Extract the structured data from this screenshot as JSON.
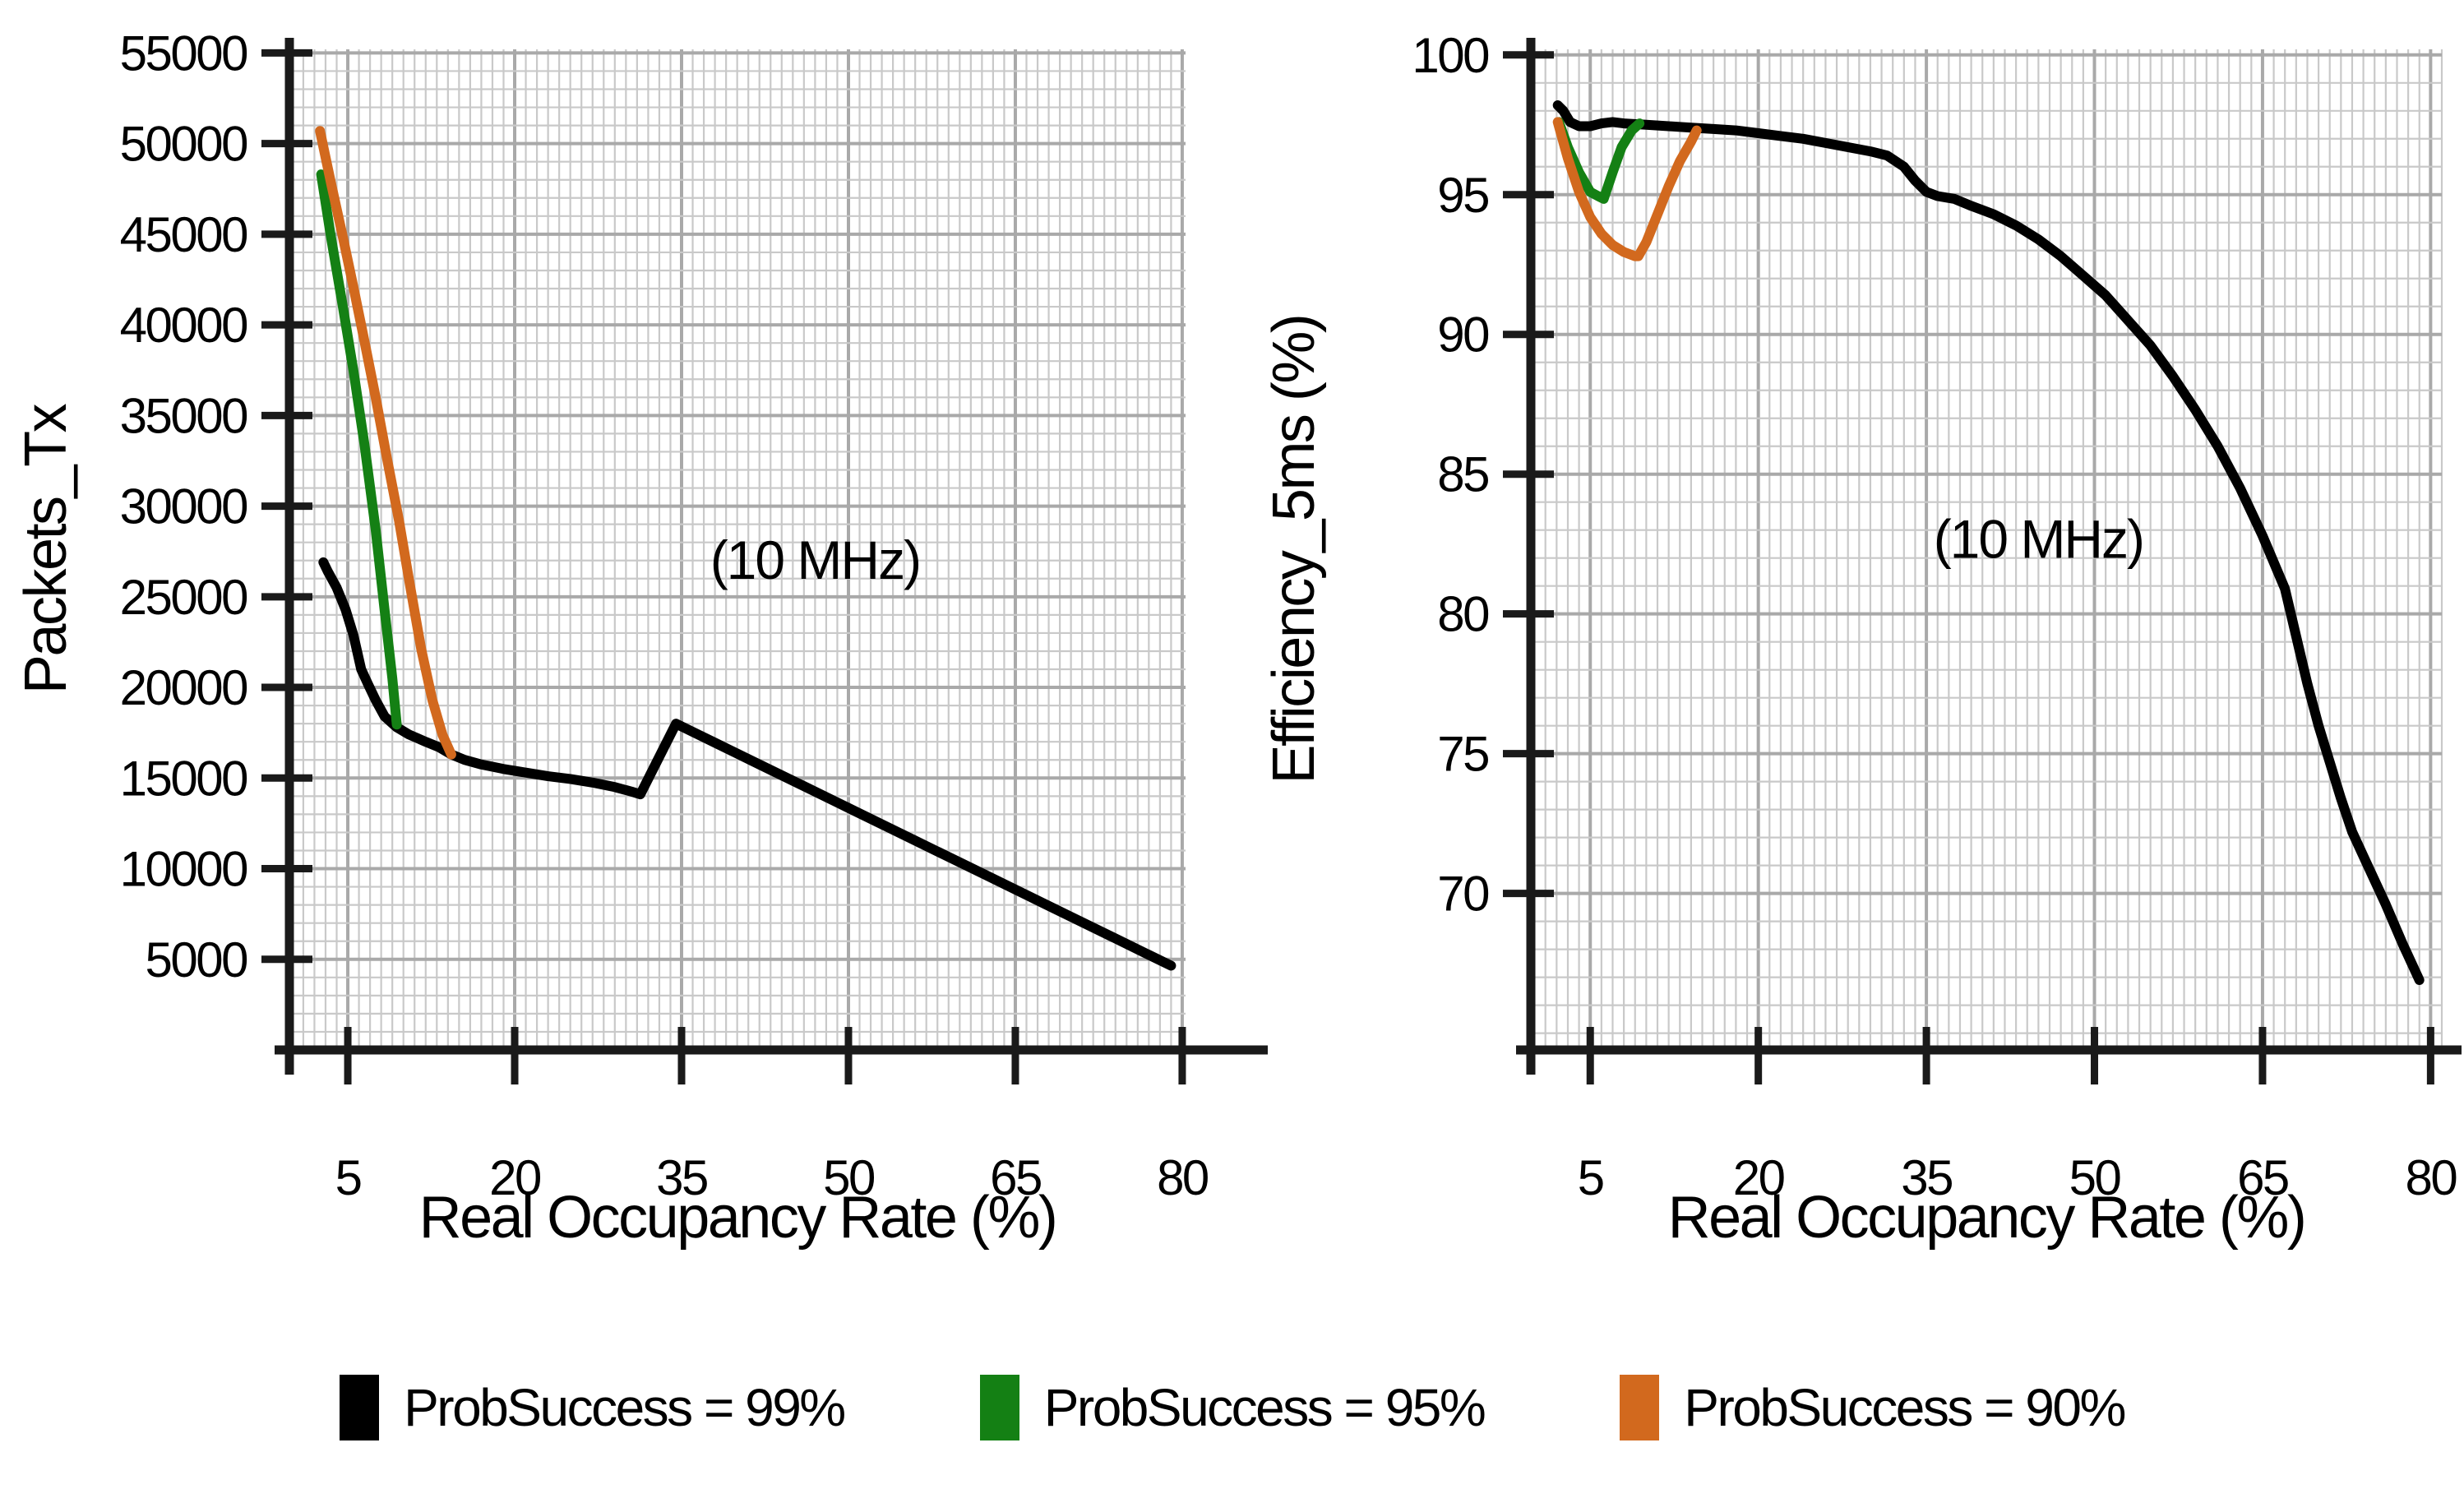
{
  "legend": {
    "items": [
      {
        "label": "ProbSuccess = 99%",
        "color": "#000000"
      },
      {
        "label": "ProbSuccess = 95%",
        "color": "#148014"
      },
      {
        "label": "ProbSuccess = 90%",
        "color": "#D2691E"
      }
    ]
  },
  "chart_data": [
    {
      "type": "line",
      "name": "packets-tx",
      "title": "",
      "xlabel": "Real Occupancy Rate (%)",
      "ylabel": "Packets_Tx",
      "annotation": {
        "text": "(10 MHz)",
        "x": 47,
        "y": 26000
      },
      "xlim": [
        -0.25,
        80.3
      ],
      "ylim": [
        0,
        55200
      ],
      "xticks": [
        5,
        20,
        35,
        50,
        65,
        80
      ],
      "yticks": [
        5000,
        10000,
        15000,
        20000,
        25000,
        30000,
        35000,
        40000,
        45000,
        50000,
        55000
      ],
      "x_minor_step": 1,
      "y_minor_step": 1000,
      "grid": true,
      "legend_position": "bottom",
      "series": [
        {
          "name": "ProbSuccess = 99%",
          "color": "#000000",
          "points": [
            [
              2.8,
              26900
            ],
            [
              3.2,
              26400
            ],
            [
              4,
              25500
            ],
            [
              4.8,
              24300
            ],
            [
              5.5,
              22900
            ],
            [
              6.2,
              21000
            ],
            [
              6.8,
              20200
            ],
            [
              7.5,
              19300
            ],
            [
              8.3,
              18400
            ],
            [
              9.4,
              17800
            ],
            [
              10.5,
              17400
            ],
            [
              12,
              17000
            ],
            [
              13.2,
              16700
            ],
            [
              14.3,
              16300
            ],
            [
              15.5,
              16000
            ],
            [
              17,
              15750
            ],
            [
              19,
              15500
            ],
            [
              21,
              15300
            ],
            [
              23,
              15100
            ],
            [
              25,
              14950
            ],
            [
              27,
              14750
            ],
            [
              29,
              14500
            ],
            [
              30.5,
              14250
            ],
            [
              31.3,
              14100
            ],
            [
              34.5,
              18000
            ],
            [
              38,
              16950
            ],
            [
              42,
              15750
            ],
            [
              46,
              14550
            ],
            [
              50,
              13350
            ],
            [
              54,
              12150
            ],
            [
              58,
              10950
            ],
            [
              62,
              9750
            ],
            [
              66,
              8550
            ],
            [
              70,
              7350
            ],
            [
              74,
              6150
            ],
            [
              77,
              5250
            ],
            [
              79,
              4650
            ]
          ]
        },
        {
          "name": "ProbSuccess = 95%",
          "color": "#148014",
          "points": [
            [
              2.6,
              48300
            ],
            [
              3.5,
              44800
            ],
            [
              4.5,
              41200
            ],
            [
              5.5,
              37500
            ],
            [
              6.5,
              33400
            ],
            [
              7.5,
              28700
            ],
            [
              8.3,
              24300
            ],
            [
              9,
              20500
            ],
            [
              9.4,
              17950
            ]
          ]
        },
        {
          "name": "ProbSuccess = 90%",
          "color": "#D2691E",
          "points": [
            [
              2.5,
              50700
            ],
            [
              3.5,
              47800
            ],
            [
              4.5,
              45000
            ],
            [
              5.5,
              42100
            ],
            [
              6.5,
              39100
            ],
            [
              7.5,
              36000
            ],
            [
              8.5,
              32700
            ],
            [
              9.6,
              29200
            ],
            [
              10.6,
              25600
            ],
            [
              11.6,
              22100
            ],
            [
              12.6,
              19300
            ],
            [
              13.5,
              17400
            ],
            [
              14.3,
              16300
            ]
          ]
        }
      ]
    },
    {
      "type": "line",
      "name": "efficiency-5ms",
      "title": "",
      "xlabel": "Real Occupancy Rate (%)",
      "ylabel": "Efficiency_5ms  (%)",
      "annotation": {
        "text": "(10 MHz)",
        "x": 45,
        "y": 82
      },
      "xlim": [
        -0.3,
        81
      ],
      "ylim": [
        64.4,
        100.2
      ],
      "xticks": [
        5,
        20,
        35,
        50,
        65,
        80
      ],
      "yticks": [
        70,
        75,
        80,
        85,
        90,
        95,
        100
      ],
      "x_minor_step": 1,
      "y_minor_step": 1,
      "grid": true,
      "legend_position": "bottom",
      "series": [
        {
          "name": "ProbSuccess = 99%",
          "color": "#000000",
          "points": [
            [
              2.1,
              98.2
            ],
            [
              2.6,
              98.0
            ],
            [
              3.2,
              97.6
            ],
            [
              4,
              97.45
            ],
            [
              5,
              97.45
            ],
            [
              6,
              97.55
            ],
            [
              7,
              97.6
            ],
            [
              8,
              97.55
            ],
            [
              10,
              97.5
            ],
            [
              12,
              97.45
            ],
            [
              14,
              97.4
            ],
            [
              16,
              97.35
            ],
            [
              18,
              97.3
            ],
            [
              20,
              97.2
            ],
            [
              22,
              97.1
            ],
            [
              24,
              97.0
            ],
            [
              26,
              96.85
            ],
            [
              28,
              96.7
            ],
            [
              30,
              96.55
            ],
            [
              31.5,
              96.4
            ],
            [
              33,
              96.0
            ],
            [
              34,
              95.5
            ],
            [
              35,
              95.1
            ],
            [
              36,
              94.95
            ],
            [
              37.5,
              94.85
            ],
            [
              39,
              94.6
            ],
            [
              41,
              94.3
            ],
            [
              43,
              93.9
            ],
            [
              45,
              93.4
            ],
            [
              47,
              92.8
            ],
            [
              49,
              92.1
            ],
            [
              51,
              91.4
            ],
            [
              53,
              90.5
            ],
            [
              55,
              89.6
            ],
            [
              57,
              88.5
            ],
            [
              59,
              87.3
            ],
            [
              61,
              86.0
            ],
            [
              63,
              84.5
            ],
            [
              65,
              82.8
            ],
            [
              67,
              80.9
            ],
            [
              69,
              77.5
            ],
            [
              70,
              76.0
            ],
            [
              71,
              74.7
            ],
            [
              72,
              73.4
            ],
            [
              73,
              72.2
            ],
            [
              74.5,
              70.9
            ],
            [
              76,
              69.6
            ],
            [
              77.5,
              68.2
            ],
            [
              79,
              66.9
            ]
          ]
        },
        {
          "name": "ProbSuccess = 95%",
          "color": "#148014",
          "points": [
            [
              2.2,
              97.6
            ],
            [
              3,
              96.7
            ],
            [
              4,
              95.8
            ],
            [
              5,
              95.1
            ],
            [
              5.7,
              94.95
            ],
            [
              6.2,
              94.85
            ],
            [
              7,
              95.8
            ],
            [
              7.8,
              96.7
            ],
            [
              8.7,
              97.3
            ],
            [
              9.4,
              97.55
            ]
          ]
        },
        {
          "name": "ProbSuccess = 90%",
          "color": "#D2691E",
          "points": [
            [
              2.1,
              97.6
            ],
            [
              3,
              96.3
            ],
            [
              4,
              95.1
            ],
            [
              5,
              94.2
            ],
            [
              6,
              93.6
            ],
            [
              7,
              93.2
            ],
            [
              8,
              92.95
            ],
            [
              9,
              92.8
            ],
            [
              9.3,
              92.8
            ],
            [
              10,
              93.3
            ],
            [
              11,
              94.3
            ],
            [
              12,
              95.3
            ],
            [
              13,
              96.2
            ],
            [
              14,
              96.9
            ],
            [
              14.5,
              97.3
            ]
          ]
        }
      ]
    }
  ]
}
